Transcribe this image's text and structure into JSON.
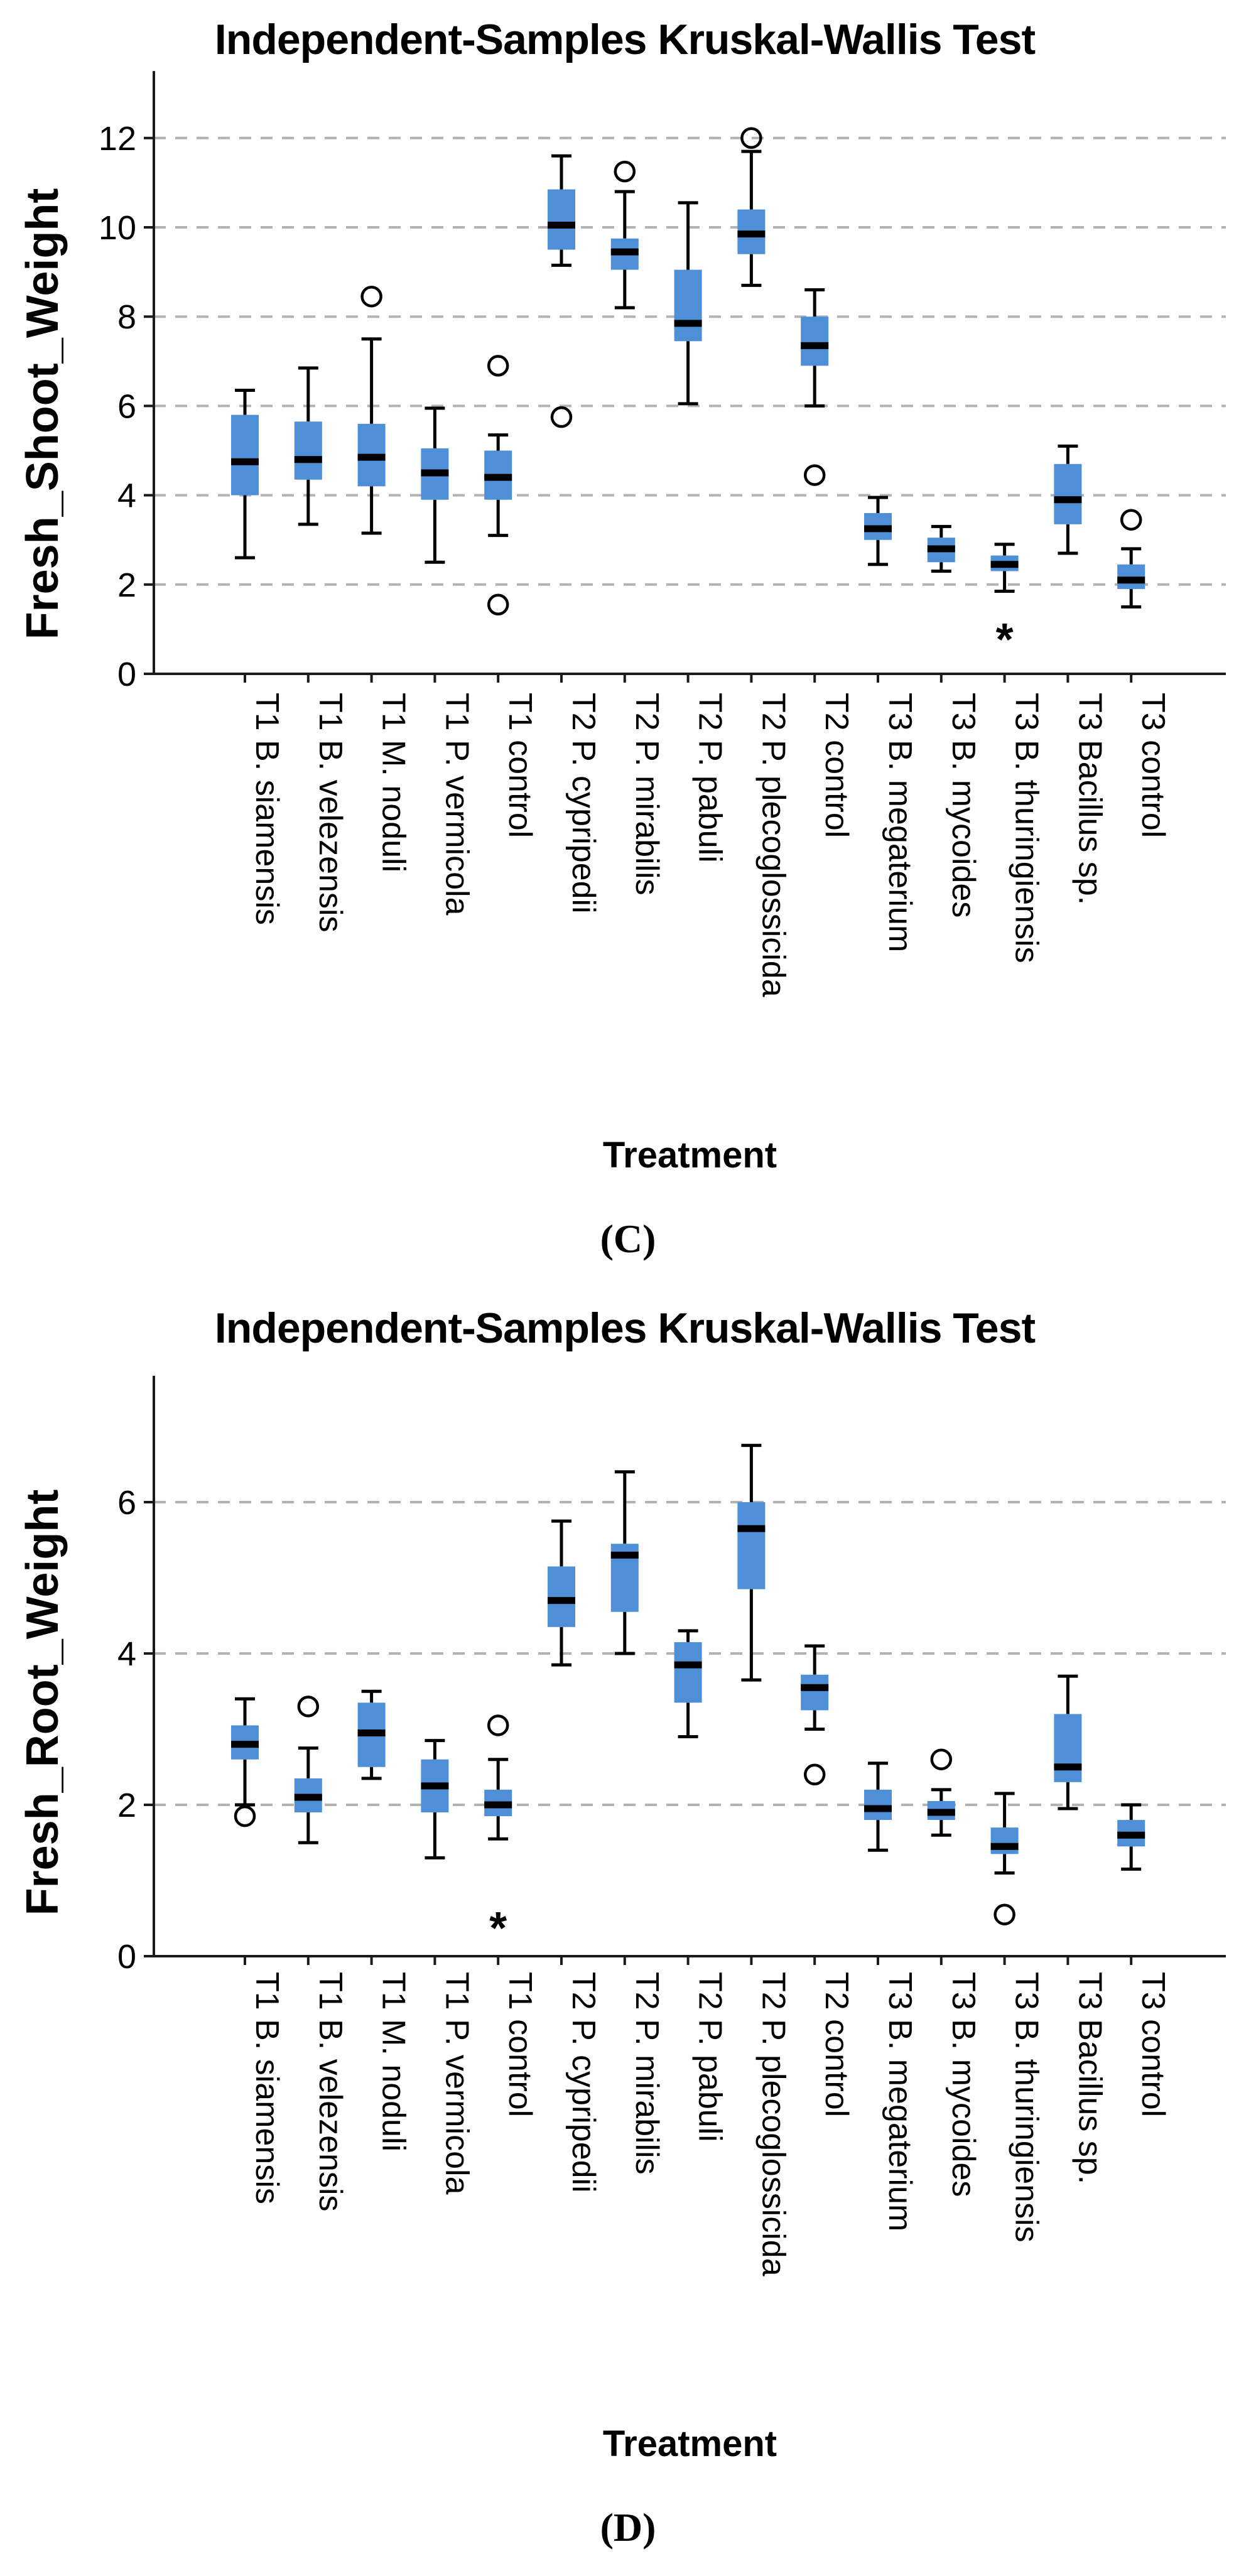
{
  "page": {
    "background": "#ffffff"
  },
  "colors": {
    "box_fill": "#4E8FD8",
    "median": "#000000",
    "whisker": "#000000",
    "gridline": "#b3b3b3",
    "axis": "#1a1a1a",
    "outlier": "#000000"
  },
  "categories": [
    "T1 B. siamensis",
    "T1 B. velezensis",
    "T1 M. noduli",
    "T1 P. vermicola",
    "T1 control",
    "T2 P. cypripedii",
    "T2 P. mirabilis",
    "T2 P. pabuli",
    "T2 P. plecoglossicida",
    "T2 control",
    "T3 B. megaterium",
    "T3 B. mycoides",
    "T3 B. thuringiensis",
    "T3 Bacillus sp.",
    "T3 control"
  ],
  "chart_data": [
    {
      "type": "boxplot",
      "panel_label": "(C)",
      "title": "Independent-Samples Kruskal-Wallis Test",
      "xlabel": "Treatment",
      "ylabel": "Fresh_Shoot_Weight",
      "ylim": [
        0,
        13.5
      ],
      "yticks": [
        0,
        2,
        4,
        6,
        8,
        10,
        12
      ],
      "gridlines": [
        2,
        4,
        6,
        8,
        10,
        12
      ],
      "grid": true,
      "legend": "none",
      "boxes": [
        {
          "category": "T1 B. siamensis",
          "whisker_low": 2.6,
          "q1": 4.0,
          "median": 4.75,
          "q3": 5.8,
          "whisker_high": 6.35,
          "outliers": [],
          "extremes": []
        },
        {
          "category": "T1 B. velezensis",
          "whisker_low": 3.35,
          "q1": 4.35,
          "median": 4.8,
          "q3": 5.65,
          "whisker_high": 6.85,
          "outliers": [],
          "extremes": []
        },
        {
          "category": "T1 M. noduli",
          "whisker_low": 3.15,
          "q1": 4.2,
          "median": 4.85,
          "q3": 5.6,
          "whisker_high": 7.5,
          "outliers": [
            8.45
          ],
          "extremes": []
        },
        {
          "category": "T1 P. vermicola",
          "whisker_low": 2.5,
          "q1": 3.9,
          "median": 4.5,
          "q3": 5.05,
          "whisker_high": 5.95,
          "outliers": [],
          "extremes": []
        },
        {
          "category": "T1 control",
          "whisker_low": 3.1,
          "q1": 3.9,
          "median": 4.4,
          "q3": 5.0,
          "whisker_high": 5.35,
          "outliers": [
            6.9,
            1.55
          ],
          "extremes": []
        },
        {
          "category": "T2 P. cypripedii",
          "whisker_low": 9.15,
          "q1": 9.5,
          "median": 10.05,
          "q3": 10.85,
          "whisker_high": 11.6,
          "outliers": [
            5.75
          ],
          "extremes": []
        },
        {
          "category": "T2 P. mirabilis",
          "whisker_low": 8.2,
          "q1": 9.05,
          "median": 9.45,
          "q3": 9.75,
          "whisker_high": 10.8,
          "outliers": [
            11.25
          ],
          "extremes": []
        },
        {
          "category": "T2 P. pabuli",
          "whisker_low": 6.05,
          "q1": 7.45,
          "median": 7.85,
          "q3": 9.05,
          "whisker_high": 10.55,
          "outliers": [],
          "extremes": []
        },
        {
          "category": "T2 P. plecoglossicida",
          "whisker_low": 8.7,
          "q1": 9.4,
          "median": 9.85,
          "q3": 10.4,
          "whisker_high": 11.7,
          "outliers": [
            12.0
          ],
          "extremes": []
        },
        {
          "category": "T2 control",
          "whisker_low": 6.0,
          "q1": 6.9,
          "median": 7.35,
          "q3": 8.0,
          "whisker_high": 8.6,
          "outliers": [
            4.45
          ],
          "extremes": []
        },
        {
          "category": "T3 B. megaterium",
          "whisker_low": 2.45,
          "q1": 3.0,
          "median": 3.25,
          "q3": 3.6,
          "whisker_high": 3.95,
          "outliers": [],
          "extremes": []
        },
        {
          "category": "T3 B. mycoides",
          "whisker_low": 2.3,
          "q1": 2.5,
          "median": 2.8,
          "q3": 3.05,
          "whisker_high": 3.3,
          "outliers": [],
          "extremes": []
        },
        {
          "category": "T3 B. thuringiensis",
          "whisker_low": 1.85,
          "q1": 2.3,
          "median": 2.45,
          "q3": 2.65,
          "whisker_high": 2.9,
          "outliers": [],
          "extremes": [
            0.9
          ]
        },
        {
          "category": "T3 Bacillus sp.",
          "whisker_low": 2.7,
          "q1": 3.35,
          "median": 3.9,
          "q3": 4.7,
          "whisker_high": 5.1,
          "outliers": [],
          "extremes": []
        },
        {
          "category": "T3 control",
          "whisker_low": 1.5,
          "q1": 1.9,
          "median": 2.1,
          "q3": 2.45,
          "whisker_high": 2.8,
          "outliers": [
            3.45
          ],
          "extremes": []
        }
      ]
    },
    {
      "type": "boxplot",
      "panel_label": "(D)",
      "title": "Independent-Samples Kruskal-Wallis Test",
      "xlabel": "Treatment",
      "ylabel": "Fresh_Root_Weight",
      "ylim": [
        0,
        7.67
      ],
      "yticks": [
        0,
        2,
        4,
        6
      ],
      "gridlines": [
        2,
        4,
        6
      ],
      "grid": true,
      "legend": "none",
      "boxes": [
        {
          "category": "T1 B. siamensis",
          "whisker_low": 2.0,
          "q1": 2.6,
          "median": 2.8,
          "q3": 3.05,
          "whisker_high": 3.4,
          "outliers": [
            1.85
          ],
          "extremes": []
        },
        {
          "category": "T1 B. velezensis",
          "whisker_low": 1.5,
          "q1": 1.9,
          "median": 2.1,
          "q3": 2.35,
          "whisker_high": 2.75,
          "outliers": [
            3.3
          ],
          "extremes": []
        },
        {
          "category": "T1 M. noduli",
          "whisker_low": 2.35,
          "q1": 2.5,
          "median": 2.95,
          "q3": 3.35,
          "whisker_high": 3.5,
          "outliers": [],
          "extremes": []
        },
        {
          "category": "T1 P. vermicola",
          "whisker_low": 1.3,
          "q1": 1.9,
          "median": 2.25,
          "q3": 2.6,
          "whisker_high": 2.85,
          "outliers": [],
          "extremes": []
        },
        {
          "category": "T1 control",
          "whisker_low": 1.55,
          "q1": 1.85,
          "median": 2.0,
          "q3": 2.2,
          "whisker_high": 2.6,
          "outliers": [
            3.05
          ],
          "extremes": [
            0.45
          ]
        },
        {
          "category": "T2 P. cypripedii",
          "whisker_low": 3.85,
          "q1": 4.35,
          "median": 4.7,
          "q3": 5.15,
          "whisker_high": 5.75,
          "outliers": [],
          "extremes": []
        },
        {
          "category": "T2 P. mirabilis",
          "whisker_low": 4.0,
          "q1": 4.55,
          "median": 5.3,
          "q3": 5.45,
          "whisker_high": 6.4,
          "outliers": [],
          "extremes": []
        },
        {
          "category": "T2 P. pabuli",
          "whisker_low": 2.9,
          "q1": 3.35,
          "median": 3.85,
          "q3": 4.15,
          "whisker_high": 4.3,
          "outliers": [],
          "extremes": []
        },
        {
          "category": "T2 P. plecoglossicida",
          "whisker_low": 3.65,
          "q1": 4.85,
          "median": 5.65,
          "q3": 6.0,
          "whisker_high": 6.75,
          "outliers": [],
          "extremes": []
        },
        {
          "category": "T2 control",
          "whisker_low": 3.0,
          "q1": 3.25,
          "median": 3.55,
          "q3": 3.72,
          "whisker_high": 4.1,
          "outliers": [
            2.4
          ],
          "extremes": []
        },
        {
          "category": "T3 B. megaterium",
          "whisker_low": 1.4,
          "q1": 1.8,
          "median": 1.95,
          "q3": 2.2,
          "whisker_high": 2.55,
          "outliers": [],
          "extremes": []
        },
        {
          "category": "T3 B. mycoides",
          "whisker_low": 1.6,
          "q1": 1.8,
          "median": 1.9,
          "q3": 2.05,
          "whisker_high": 2.2,
          "outliers": [
            2.6
          ],
          "extremes": []
        },
        {
          "category": "T3 B. thuringiensis",
          "whisker_low": 1.1,
          "q1": 1.35,
          "median": 1.45,
          "q3": 1.7,
          "whisker_high": 2.15,
          "outliers": [
            0.55
          ],
          "extremes": []
        },
        {
          "category": "T3 Bacillus sp.",
          "whisker_low": 1.95,
          "q1": 2.3,
          "median": 2.5,
          "q3": 3.2,
          "whisker_high": 3.7,
          "outliers": [],
          "extremes": []
        },
        {
          "category": "T3 control",
          "whisker_low": 1.15,
          "q1": 1.45,
          "median": 1.6,
          "q3": 1.8,
          "whisker_high": 2.0,
          "outliers": [],
          "extremes": []
        }
      ]
    }
  ]
}
